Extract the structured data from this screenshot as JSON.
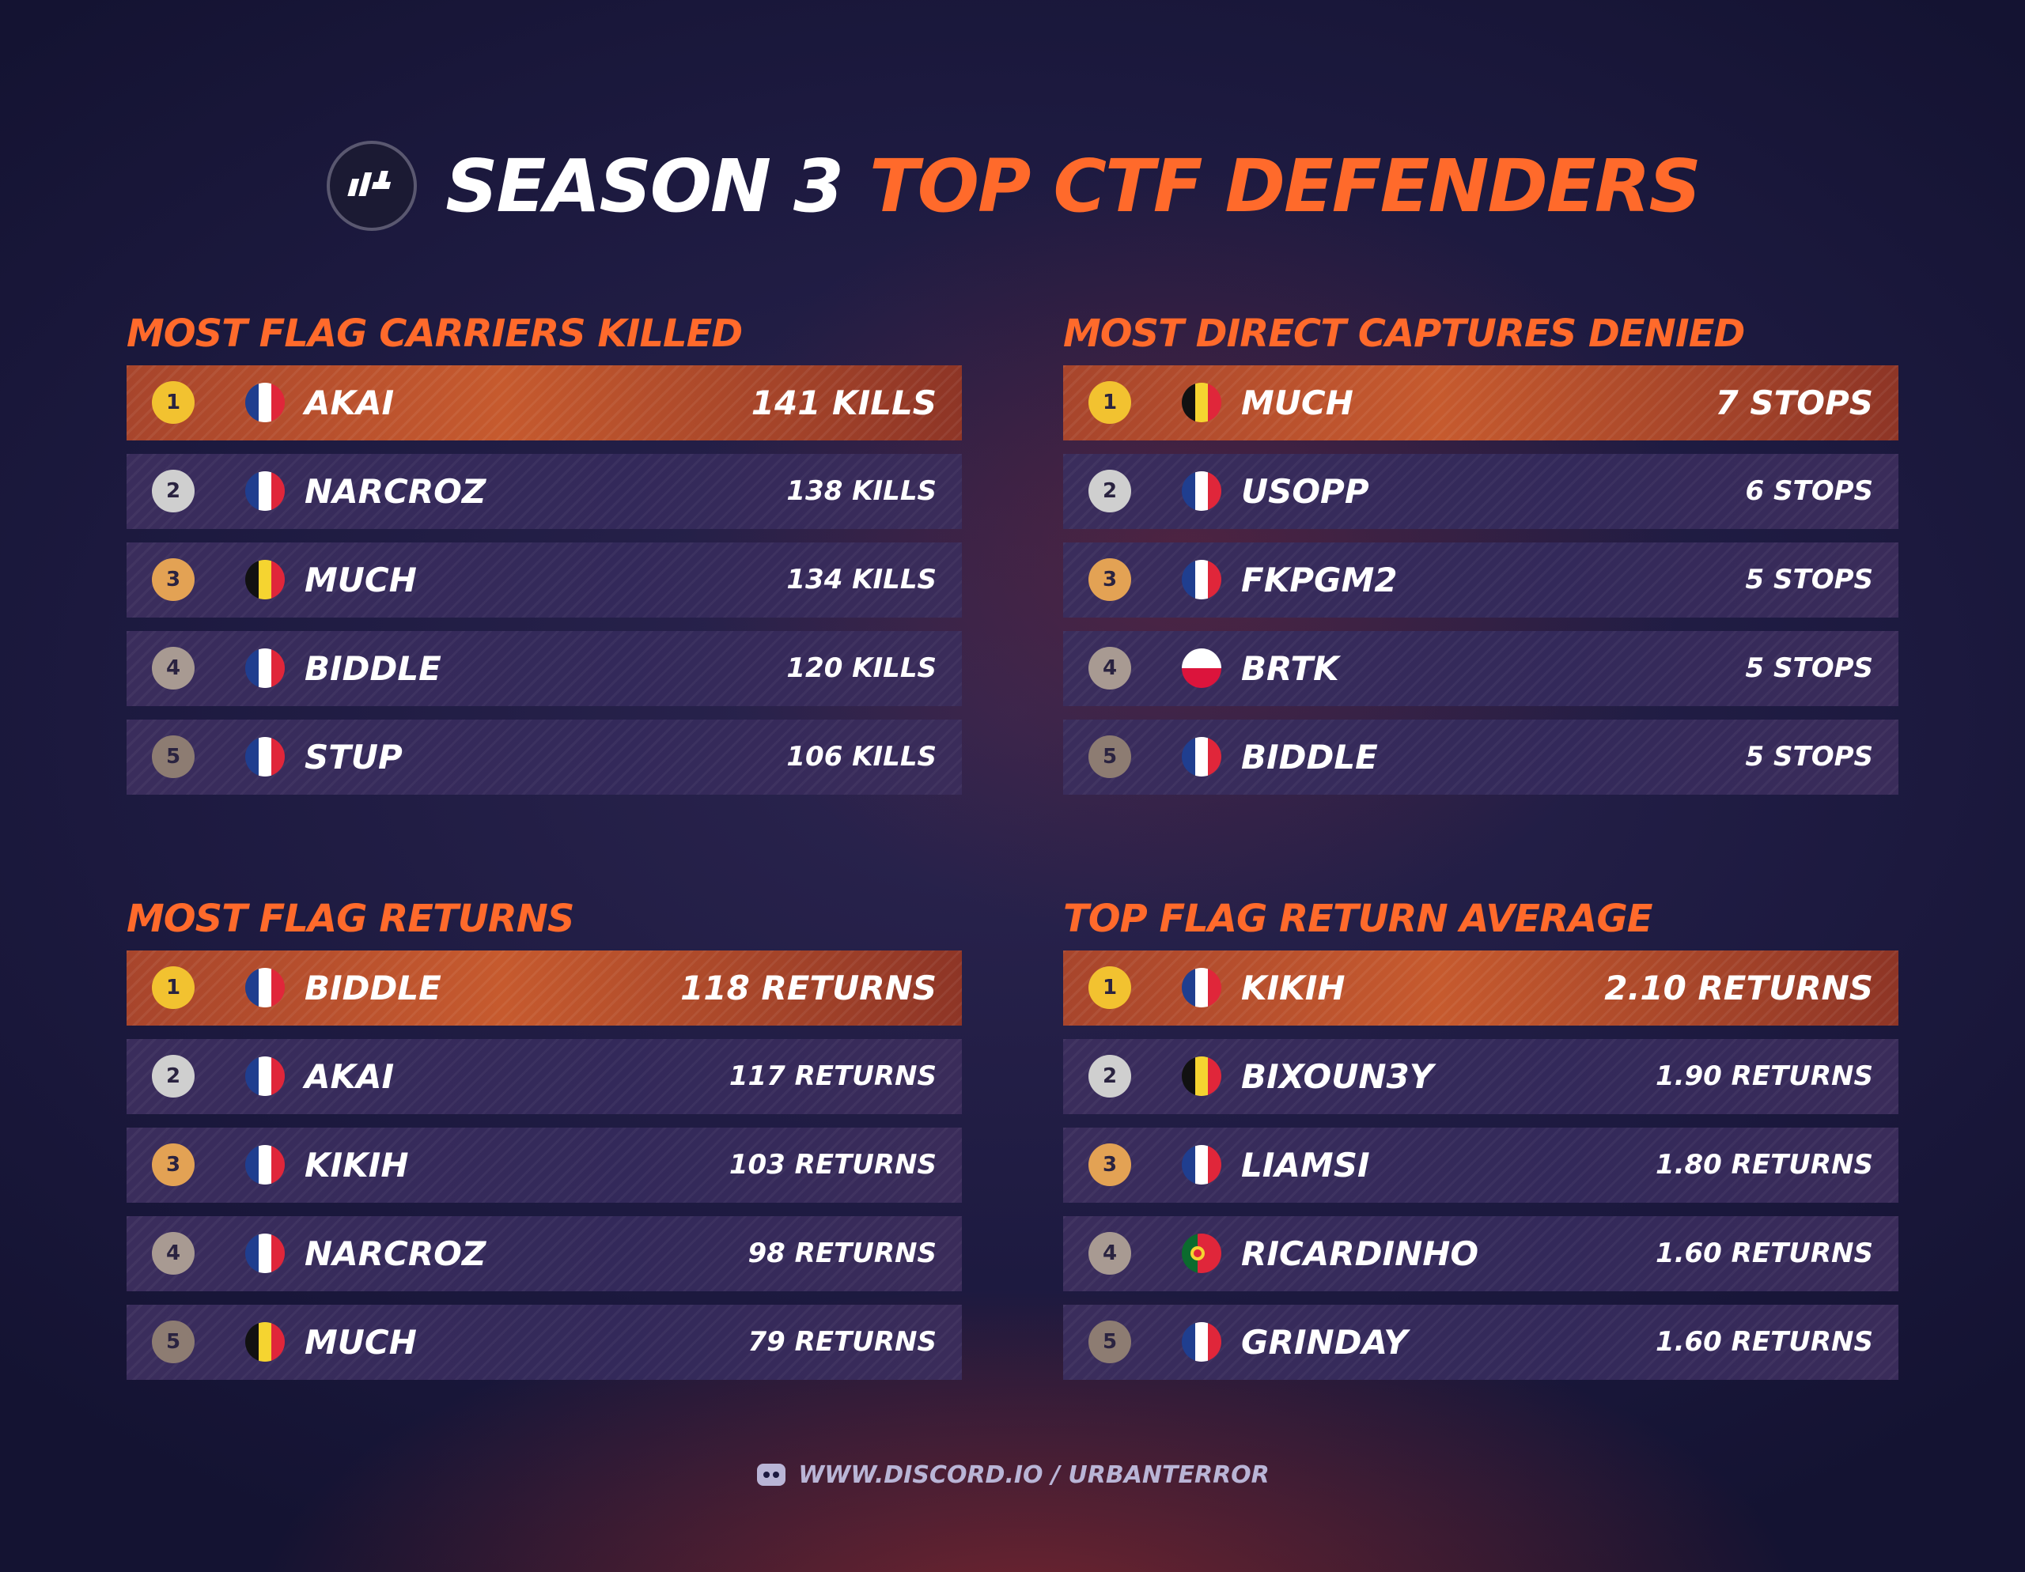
{
  "header": {
    "title_part1": "SEASON 3",
    "title_part2": "TOP CTF DEFENDERS"
  },
  "panels": [
    {
      "title": "MOST FLAG CARRIERS KILLED",
      "rows": [
        [
          "1",
          "AKAI",
          "141 KILLS"
        ],
        [
          "2",
          "NARCROZ",
          "138 KILLS"
        ],
        [
          "3",
          "MUCH",
          "134 KILLS"
        ],
        [
          "4",
          "BIDDLE",
          "120 KILLS"
        ],
        [
          "5",
          "STUP",
          "106 KILLS"
        ]
      ]
    },
    {
      "title": "MOST DIRECT CAPTURES DENIED",
      "rows": [
        [
          "1",
          "MUCH",
          "7 STOPS"
        ],
        [
          "2",
          "USOPP",
          "6 STOPS"
        ],
        [
          "3",
          "FKPGM2",
          "5 STOPS"
        ],
        [
          "4",
          "BRTK",
          "5 STOPS"
        ],
        [
          "5",
          "BIDDLE",
          "5 STOPS"
        ]
      ]
    },
    {
      "title": "MOST FLAG RETURNS",
      "rows": [
        [
          "1",
          "BIDDLE",
          "118 RETURNS"
        ],
        [
          "2",
          "AKAI",
          "117 RETURNS"
        ],
        [
          "3",
          "KIKIH",
          "103 RETURNS"
        ],
        [
          "4",
          "NARCROZ",
          "98 RETURNS"
        ],
        [
          "5",
          "MUCH",
          "79 RETURNS"
        ]
      ]
    },
    {
      "title": "TOP FLAG RETURN AVERAGE",
      "rows": [
        [
          "1",
          "KIKIH",
          "2.10 RETURNS"
        ],
        [
          "2",
          "BIXOUN3Y",
          "1.90 RETURNS"
        ],
        [
          "3",
          "LIAMSI",
          "1.80 RETURNS"
        ],
        [
          "4",
          "RICARDINHO",
          "1.60 RETURNS"
        ],
        [
          "5",
          "GRINDAY",
          "1.60 RETURNS"
        ]
      ]
    }
  ],
  "footer": {
    "link": "WWW.DISCORD.IO / URBANTERROR"
  }
}
